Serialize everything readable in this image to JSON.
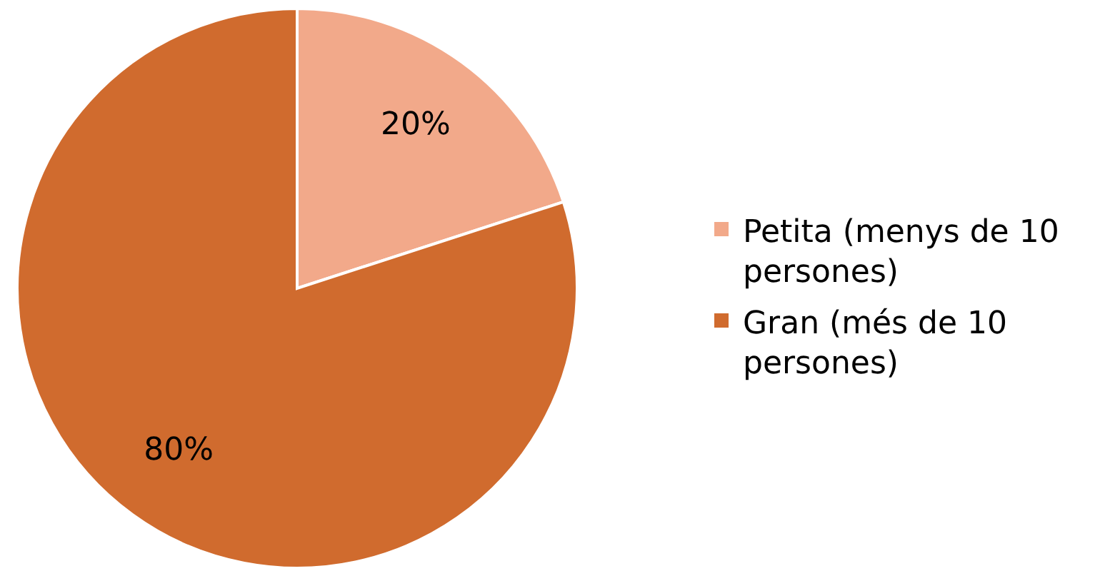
{
  "chart_data": {
    "type": "pie",
    "categories": [
      "Petita (menys de 10 persones)",
      "Gran (més de 10 persones)"
    ],
    "values": [
      20,
      80
    ],
    "colors": [
      "#f2a98a",
      "#d06b2e"
    ],
    "value_labels": [
      "20%",
      "80%"
    ],
    "legend": "right"
  }
}
